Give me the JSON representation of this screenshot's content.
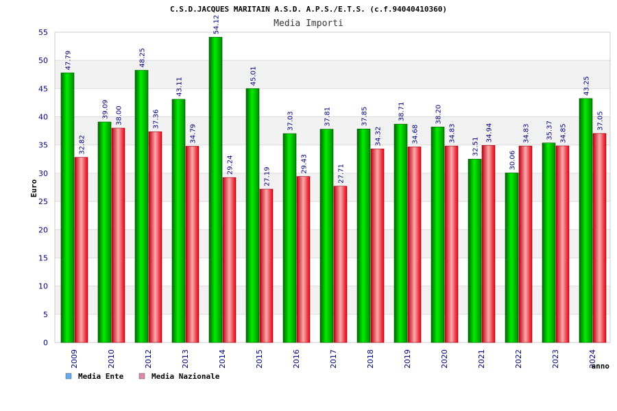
{
  "chart_data": {
    "type": "bar",
    "title": "C.S.D.JACQUES MARITAIN A.S.D. A.P.S./E.T.S. (c.f.94040410360)",
    "subtitle": "Media Importi",
    "xlabel": "anno",
    "ylabel": "Euro",
    "ylim": [
      0,
      55
    ],
    "y_ticks": [
      "0",
      "5",
      "10",
      "15",
      "20",
      "25",
      "30",
      "35",
      "40",
      "45",
      "50",
      "55"
    ],
    "grid": true,
    "legend_position": "bottom-left",
    "categories": [
      "2009",
      "2010",
      "2012",
      "2013",
      "2014",
      "2015",
      "2016",
      "2017",
      "2018",
      "2019",
      "2020",
      "2021",
      "2022",
      "2023",
      "2024"
    ],
    "series": [
      {
        "name": "Media Ente",
        "color": "#00bb00",
        "legend_color": "#66aaee",
        "values": [
          47.79,
          39.09,
          48.25,
          43.11,
          54.12,
          45.01,
          37.03,
          37.81,
          37.85,
          38.71,
          38.2,
          32.51,
          30.06,
          35.37,
          43.25
        ],
        "labels": [
          "47.79",
          "39.09",
          "48.25",
          "43.11",
          "54.12",
          "45.01",
          "37.03",
          "37.81",
          "37.85",
          "38.71",
          "38.20",
          "32.51",
          "30.06",
          "35.37",
          "43.25"
        ]
      },
      {
        "name": "Media Nazionale",
        "color": "#ee2233",
        "legend_color": "#dd88aa",
        "values": [
          32.82,
          38.0,
          37.36,
          34.79,
          29.24,
          27.19,
          29.43,
          27.71,
          34.32,
          34.68,
          34.83,
          34.94,
          34.83,
          34.85,
          37.05
        ],
        "labels": [
          "32.82",
          "38.00",
          "37.36",
          "34.79",
          "29.24",
          "27.19",
          "29.43",
          "27.71",
          "34.32",
          "34.68",
          "34.83",
          "34.94",
          "34.83",
          "34.85",
          "37.05"
        ]
      }
    ]
  }
}
